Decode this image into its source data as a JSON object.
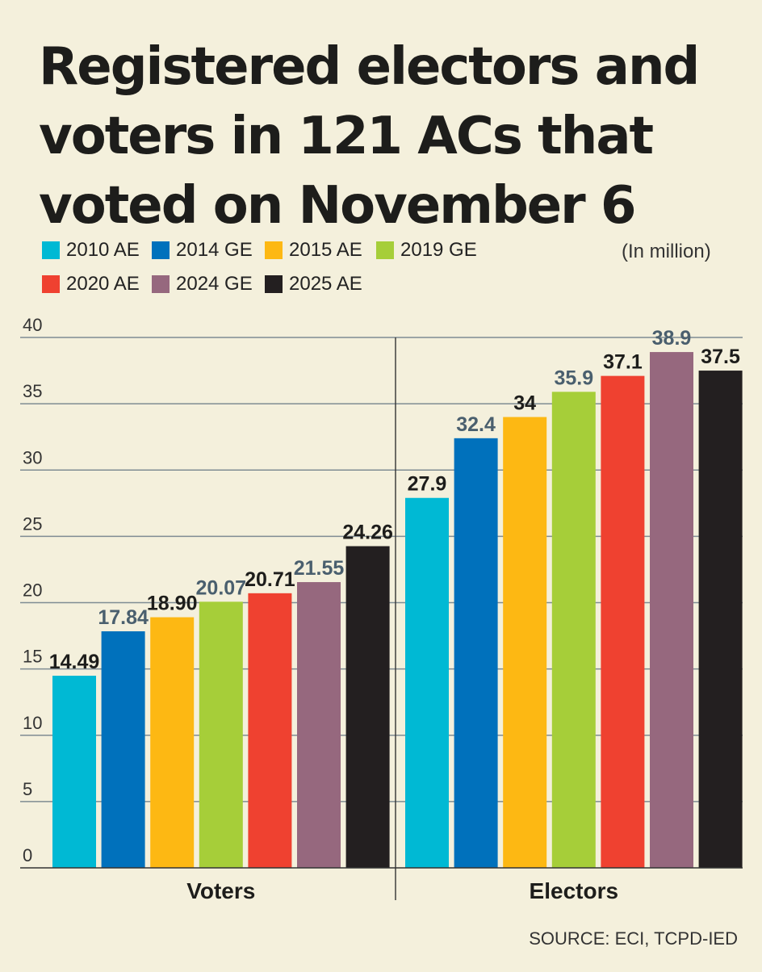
{
  "title": "Registered electors and voters in 121 ACs that voted on November 6",
  "unit_note": "(In million)",
  "source": "SOURCE: ECI, TCPD-IED",
  "chart_data": {
    "type": "bar",
    "categories": [
      "Voters",
      "Electors"
    ],
    "ylim": [
      0,
      40
    ],
    "yticks": [
      0,
      5,
      10,
      15,
      20,
      25,
      30,
      35,
      40
    ],
    "legend_placement": "top-left",
    "grid": true,
    "series": [
      {
        "name": "2010 AE",
        "color": "#00b9d4",
        "label_color": "#1d1d1b",
        "values": [
          14.49,
          27.9
        ],
        "labels": [
          "14.49",
          "27.9"
        ]
      },
      {
        "name": "2014 GE",
        "color": "#0071bc",
        "label_color": "#4a5f6e",
        "values": [
          17.84,
          32.4
        ],
        "labels": [
          "17.84",
          "32.4"
        ]
      },
      {
        "name": "2015 AE",
        "color": "#fdb813",
        "label_color": "#1d1d1b",
        "values": [
          18.9,
          34
        ],
        "labels": [
          "18.90",
          "34"
        ]
      },
      {
        "name": "2019 GE",
        "color": "#a6ce39",
        "label_color": "#4a5f6e",
        "values": [
          20.07,
          35.9
        ],
        "labels": [
          "20.07",
          "35.9"
        ]
      },
      {
        "name": "2020 AE",
        "color": "#ef4130",
        "label_color": "#1d1d1b",
        "values": [
          20.71,
          37.1
        ],
        "labels": [
          "20.71",
          "37.1"
        ]
      },
      {
        "name": "2024 GE",
        "color": "#96687e",
        "label_color": "#4a5f6e",
        "values": [
          21.55,
          38.9
        ],
        "labels": [
          "21.55",
          "38.9"
        ]
      },
      {
        "name": "2025 AE",
        "color": "#231f20",
        "label_color": "#1d1d1b",
        "values": [
          24.26,
          37.5
        ],
        "labels": [
          "24.26",
          "37.5"
        ]
      }
    ]
  }
}
